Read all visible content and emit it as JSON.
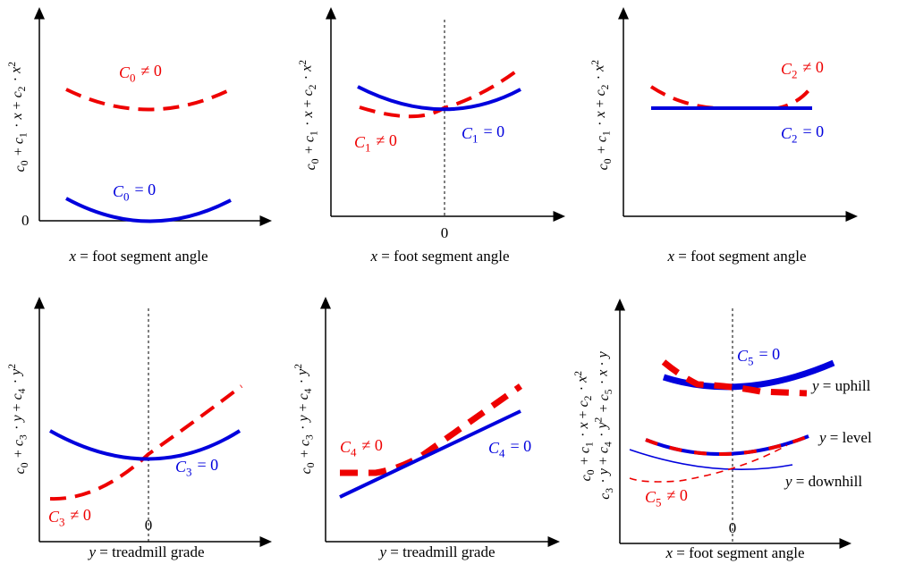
{
  "colors": {
    "blue": "#0000dd",
    "red": "#ee0000",
    "axis": "#000000"
  },
  "panels": {
    "p1": {
      "ylabel_parts": [
        "c",
        "0",
        " + ",
        "c",
        "1",
        " · ",
        "x",
        " + ",
        "c",
        "2",
        " · ",
        "x",
        "2"
      ],
      "xlabel_var": "x",
      "xlabel_rest": " = foot segment angle",
      "zero_y": "0",
      "ann_red": [
        "C",
        "0",
        " ≠ 0"
      ],
      "ann_blue": [
        "C",
        "0",
        " = 0"
      ]
    },
    "p2": {
      "xlabel_var": "x",
      "xlabel_rest": " = foot segment angle",
      "zero_x": "0",
      "ann_red": [
        "C",
        "1",
        " ≠ 0"
      ],
      "ann_blue": [
        "C",
        "1",
        " = 0"
      ]
    },
    "p3": {
      "xlabel_var": "x",
      "xlabel_rest": " = foot segment angle",
      "ann_red": [
        "C",
        "2",
        " ≠ 0"
      ],
      "ann_blue": [
        "C",
        "2",
        " = 0"
      ]
    },
    "p4": {
      "ylabel_parts": [
        "c",
        "0",
        " + ",
        "c",
        "3",
        " · ",
        "y",
        " + ",
        "c",
        "4",
        " · ",
        "y",
        "2"
      ],
      "xlabel_var": "y",
      "xlabel_rest": " = treadmill grade",
      "zero_x": "0",
      "ann_red": [
        "C",
        "3",
        " ≠ 0"
      ],
      "ann_blue": [
        "C",
        "3",
        " = 0"
      ]
    },
    "p5": {
      "xlabel_var": "y",
      "xlabel_rest": " = treadmill grade",
      "ann_red": [
        "C",
        "4",
        " ≠ 0"
      ],
      "ann_blue": [
        "C",
        "4",
        " = 0"
      ]
    },
    "p6": {
      "ylabel_line1": [
        "c",
        "0",
        " + ",
        "c",
        "1",
        " · ",
        "x",
        " + ",
        "c",
        "2",
        " · ",
        "x",
        "2"
      ],
      "ylabel_line2": [
        "c",
        "3",
        " · ",
        "y",
        " + ",
        "c",
        "4",
        " · ",
        "y",
        "2",
        " + ",
        "c",
        "5",
        " · ",
        "x",
        " · ",
        "y"
      ],
      "xlabel_var": "x",
      "xlabel_rest": " = foot segment angle",
      "zero_x": "0",
      "ann_red": [
        "C",
        "5",
        " ≠ 0"
      ],
      "ann_blue": [
        "C",
        "5",
        " = 0"
      ],
      "curve_labels": [
        {
          "var": "y",
          "rest": " = uphill"
        },
        {
          "var": "y",
          "rest": " = level"
        },
        {
          "var": "y",
          "rest": " = downhill"
        }
      ]
    }
  }
}
